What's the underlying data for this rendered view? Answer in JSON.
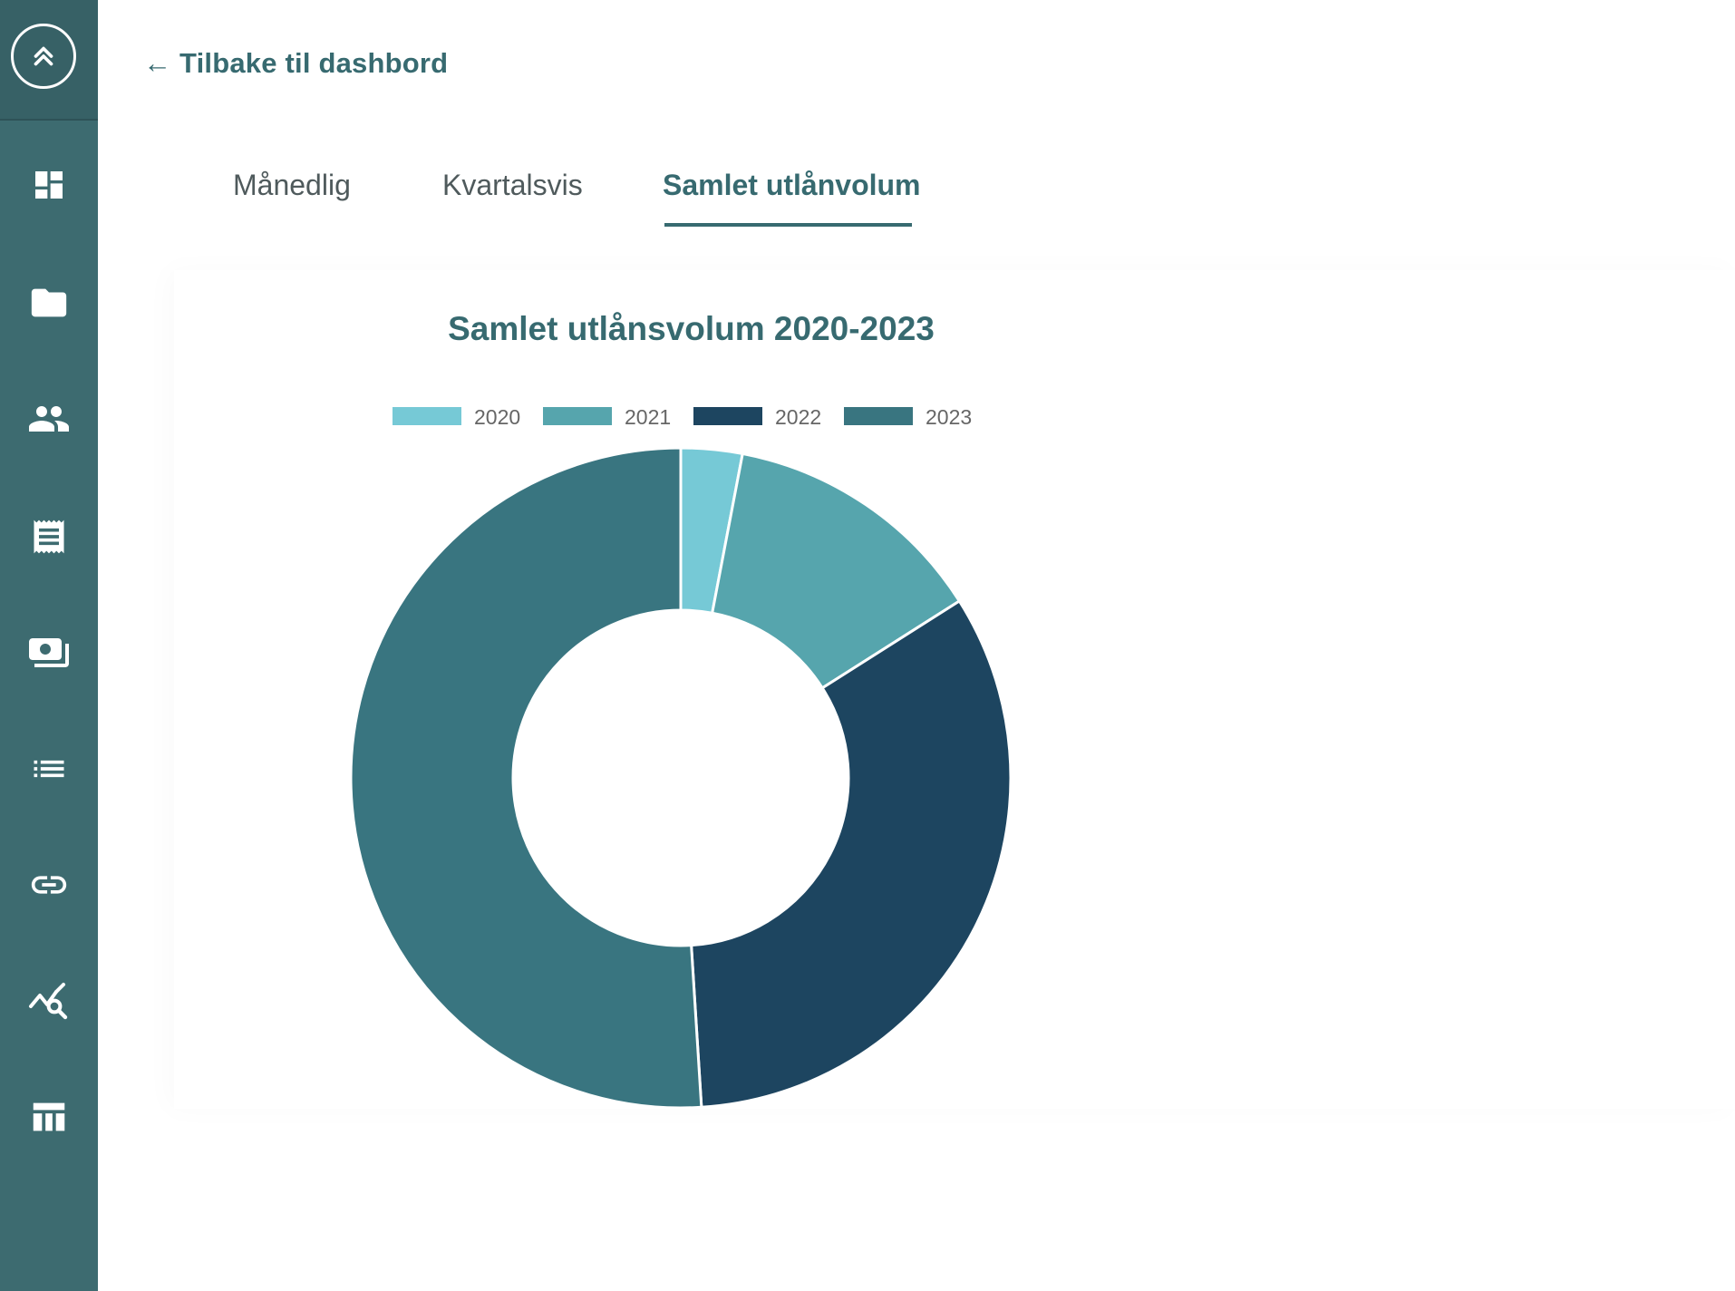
{
  "navigation": {
    "back_label": "← Tilbake til dashbord",
    "icons": [
      "collapse-icon",
      "dashboard-icon",
      "folder-icon",
      "people-icon",
      "receipt-icon",
      "payments-icon",
      "list-icon",
      "link-icon",
      "query-stats-icon",
      "table-icon"
    ]
  },
  "tabs": [
    {
      "label": "Månedlig",
      "active": false
    },
    {
      "label": "Kvartalsvis",
      "active": false
    },
    {
      "label": "Samlet utlånvolum",
      "active": true
    }
  ],
  "colors": {
    "sidebar": "#3d6b70",
    "accent": "#376a70",
    "series": [
      "#76c9d6",
      "#56a5ad",
      "#1d4560",
      "#397580"
    ]
  },
  "chart_data": {
    "type": "pie",
    "variant": "doughnut",
    "title": "Samlet utlånsvolum 2020-2023",
    "legend_position": "top",
    "categories": [
      "2020",
      "2021",
      "2022",
      "2023"
    ],
    "values": [
      3,
      13,
      33,
      51
    ]
  }
}
